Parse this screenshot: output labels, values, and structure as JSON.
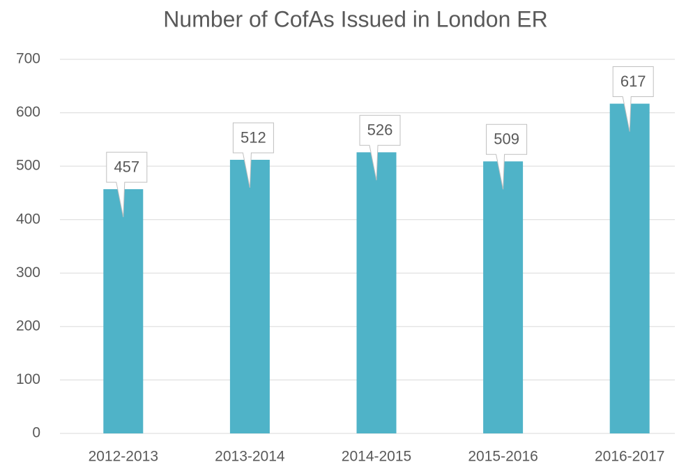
{
  "chart_data": {
    "type": "bar",
    "title": "Number of CofAs Issued in London ER",
    "categories": [
      "2012-2013",
      "2013-2014",
      "2014-2015",
      "2015-2016",
      "2016-2017"
    ],
    "values": [
      457,
      512,
      526,
      509,
      617
    ],
    "color": "#4fb3c8",
    "ylim": [
      0,
      700
    ],
    "yticks": [
      0,
      100,
      200,
      300,
      400,
      500,
      600,
      700
    ],
    "grid": true
  }
}
